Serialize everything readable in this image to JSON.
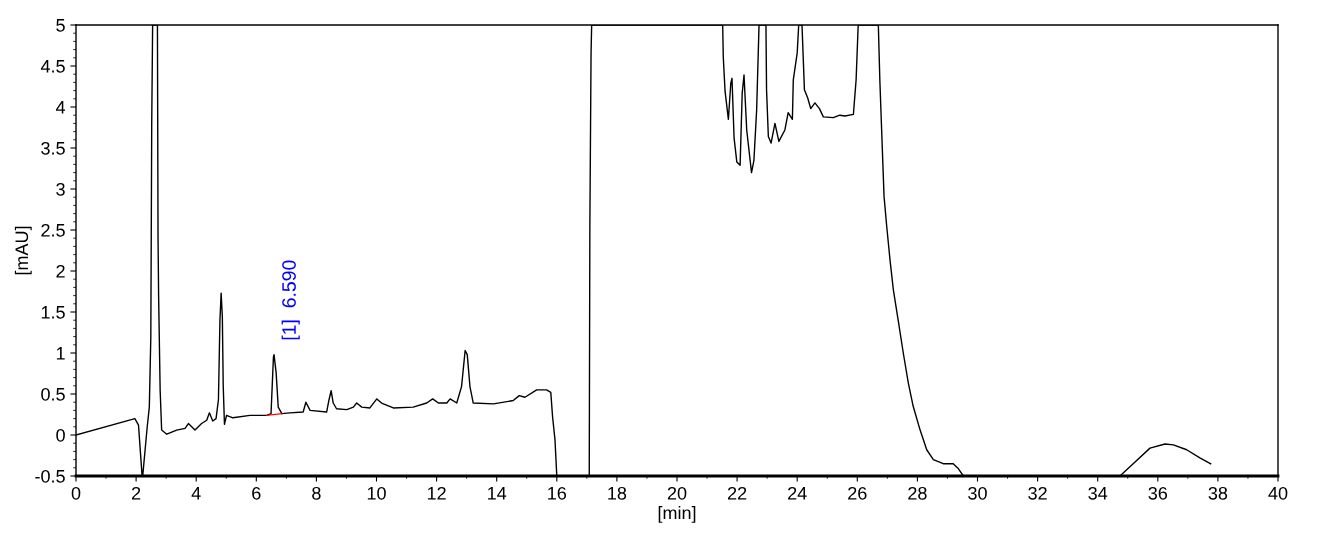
{
  "chart_data": {
    "type": "line",
    "xlabel": "[min]",
    "ylabel": "[mAU]",
    "xlim": [
      0,
      40
    ],
    "xticks": [
      0,
      2,
      4,
      6,
      8,
      10,
      12,
      14,
      16,
      18,
      20,
      22,
      24,
      26,
      28,
      30,
      32,
      34,
      36,
      38,
      40
    ],
    "ylim": [
      -0.5,
      5
    ],
    "yticks": [
      -0.5,
      0,
      0.5,
      1,
      1.5,
      2,
      2.5,
      3,
      3.5,
      4,
      4.5,
      5
    ],
    "marker": "none",
    "line_style": "solid",
    "annotations": [
      {
        "text": "[1]  6.590",
        "x": 6.59,
        "y": 0.98
      }
    ],
    "series": [
      {
        "color": "#000000",
        "x": [
          0,
          1.96,
          2.08,
          2.2,
          2.22,
          2.37,
          2.44,
          2.49,
          2.52,
          2.55,
          2.71,
          2.73,
          2.75,
          2.8,
          2.85,
          3.02,
          3.35,
          3.63,
          3.74,
          3.96,
          4.18,
          4.35,
          4.44,
          4.55,
          4.66,
          4.74,
          4.79,
          4.83,
          4.87,
          4.9,
          4.94,
          5.01,
          5.22,
          5.79,
          6.35,
          6.49,
          6.57,
          6.59,
          6.66,
          6.73,
          6.85,
          7.12,
          7.56,
          7.65,
          7.79,
          8.34,
          8.42,
          8.49,
          8.56,
          8.67,
          9.01,
          9.23,
          9.34,
          9.51,
          9.78,
          10.01,
          10.17,
          10.56,
          11.22,
          11.67,
          11.87,
          12.06,
          12.34,
          12.45,
          12.67,
          12.83,
          12.95,
          13.02,
          13.11,
          13.22,
          13.89,
          14.55,
          14.75,
          14.94,
          15.33,
          15.66,
          15.8,
          15.86,
          15.94,
          16.0,
          17.08,
          17.1,
          17.14,
          17.16,
          21.52,
          21.54,
          21.6,
          21.71,
          21.79,
          21.83,
          21.9,
          21.99,
          22.1,
          22.17,
          22.23,
          22.32,
          22.48,
          22.56,
          22.65,
          22.73,
          22.96,
          22.98,
          23.04,
          23.13,
          23.26,
          23.39,
          23.59,
          23.7,
          23.84,
          23.87,
          24.0,
          24.05,
          24.16,
          24.24,
          24.35,
          24.45,
          24.59,
          24.74,
          24.87,
          25.2,
          25.42,
          25.59,
          25.87,
          25.96,
          26.03,
          26.7,
          26.75,
          26.81,
          26.89,
          26.98,
          27.09,
          27.2,
          27.36,
          27.53,
          27.7,
          27.86,
          28.09,
          28.31,
          28.53,
          28.86,
          29.19,
          29.36,
          29.53,
          34.74,
          35.18,
          35.74,
          36.24,
          36.52,
          36.96,
          37.4,
          37.76
        ],
        "values": [
          0,
          0.2,
          0.12,
          -0.5,
          -0.5,
          0.1,
          0.34,
          1.2,
          3.8,
          5,
          5,
          2.41,
          1.68,
          0.55,
          0.06,
          0.01,
          0.06,
          0.08,
          0.14,
          0.06,
          0.14,
          0.18,
          0.27,
          0.17,
          0.2,
          0.43,
          1.4,
          1.73,
          1.44,
          0.59,
          0.13,
          0.24,
          0.21,
          0.24,
          0.24,
          0.26,
          0.95,
          0.98,
          0.76,
          0.34,
          0.26,
          0.27,
          0.28,
          0.4,
          0.3,
          0.28,
          0.43,
          0.54,
          0.39,
          0.32,
          0.31,
          0.34,
          0.39,
          0.34,
          0.33,
          0.44,
          0.39,
          0.33,
          0.34,
          0.39,
          0.44,
          0.39,
          0.39,
          0.44,
          0.39,
          0.59,
          1.03,
          0.98,
          0.59,
          0.39,
          0.38,
          0.42,
          0.48,
          0.46,
          0.55,
          0.55,
          0.52,
          0.22,
          -0.06,
          -0.5,
          -0.5,
          2.54,
          4.66,
          5,
          5,
          4.61,
          4.19,
          3.85,
          4.29,
          4.35,
          3.62,
          3.33,
          3.29,
          4.17,
          4.39,
          3.72,
          3.2,
          3.35,
          3.96,
          5,
          5,
          4.21,
          3.64,
          3.56,
          3.8,
          3.58,
          3.72,
          3.93,
          3.85,
          4.33,
          4.66,
          5,
          5,
          4.21,
          4.11,
          3.98,
          4.05,
          3.98,
          3.88,
          3.87,
          3.9,
          3.89,
          3.91,
          4.33,
          5,
          5,
          4.33,
          3.72,
          2.91,
          2.54,
          2.13,
          1.77,
          1.4,
          1.0,
          0.63,
          0.35,
          0.06,
          -0.18,
          -0.3,
          -0.35,
          -0.35,
          -0.41,
          -0.5,
          -0.5,
          -0.35,
          -0.16,
          -0.11,
          -0.12,
          -0.18,
          -0.28,
          -0.35
        ]
      },
      {
        "color": "#ff0000",
        "x": [
          6.35,
          6.85
        ],
        "values": [
          0.24,
          0.26
        ]
      }
    ]
  }
}
